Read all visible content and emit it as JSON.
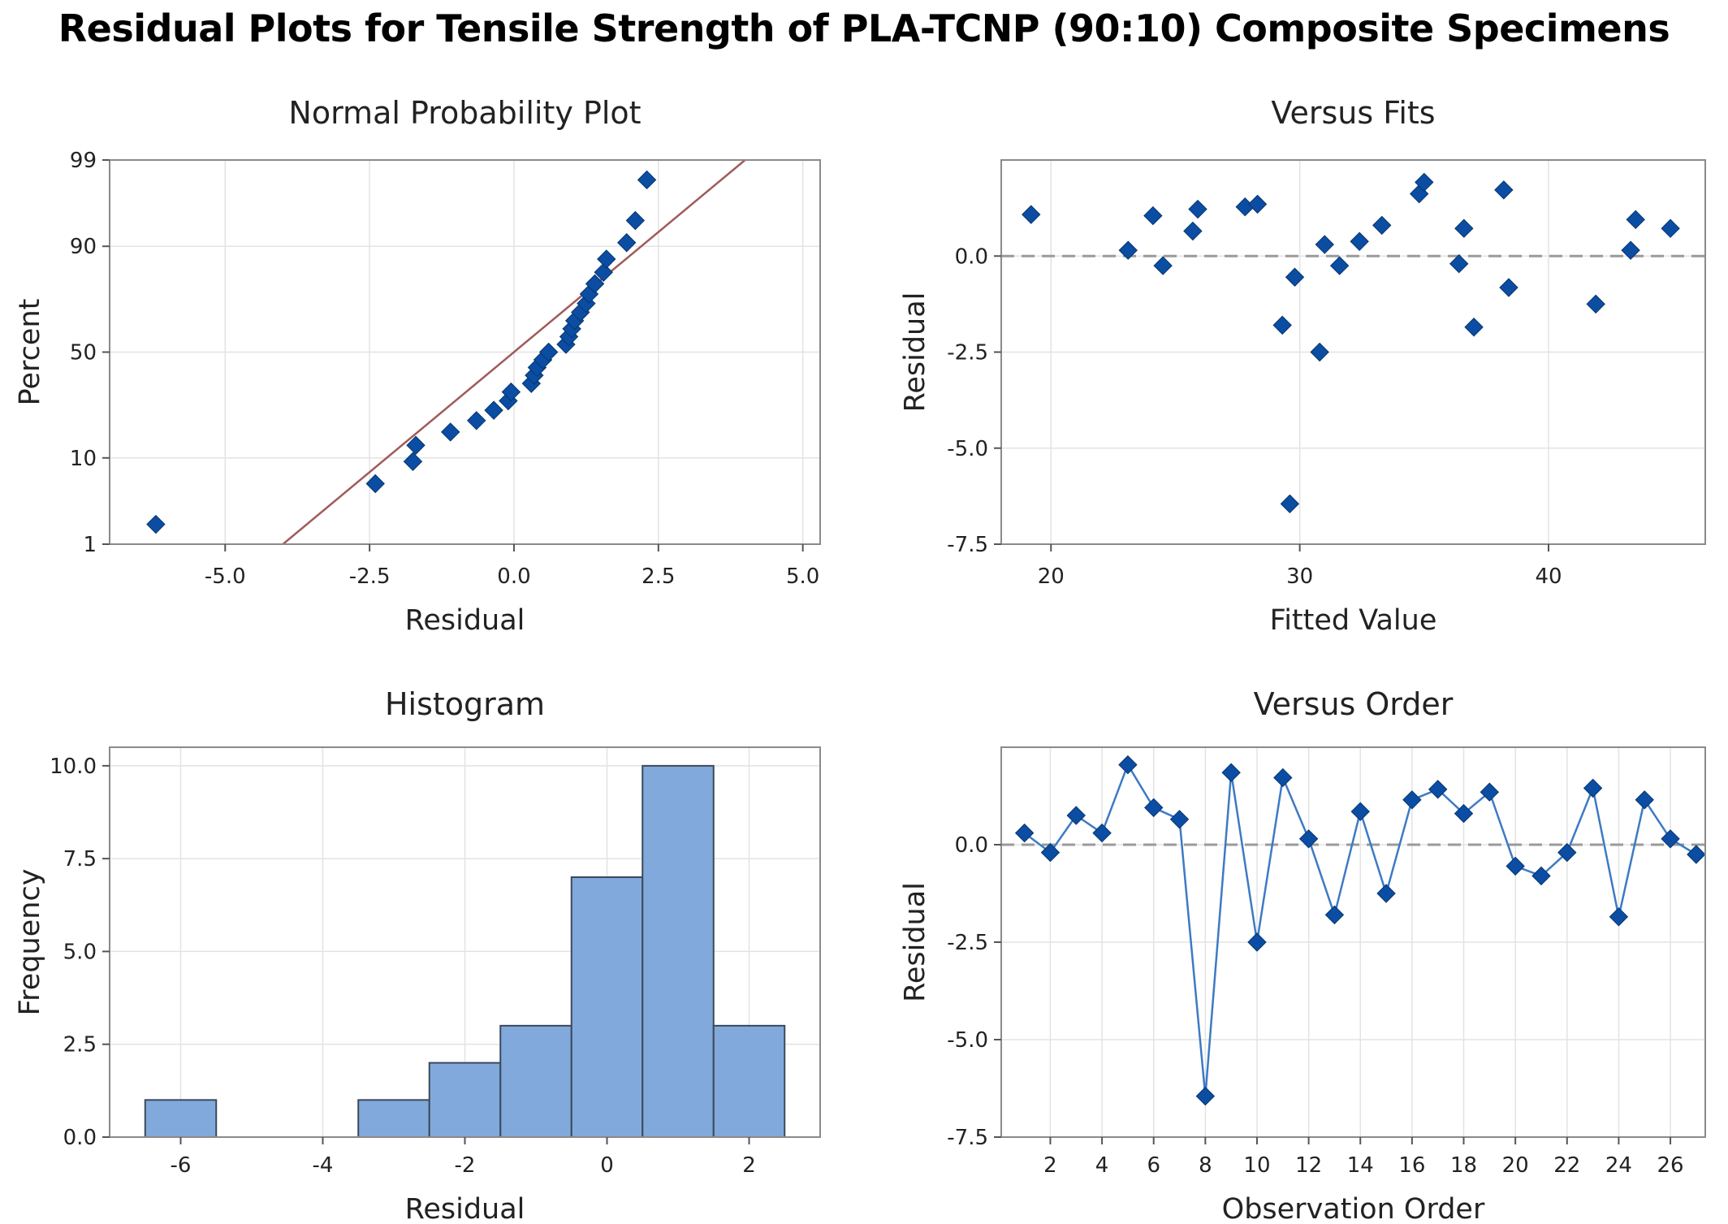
{
  "title": "Residual Plots for Tensile Strength of PLA-TCNP (90:10) Composite Specimens",
  "colors": {
    "point": "#0b4da2",
    "fit_line": "#a05a5a",
    "bar_fill": "#82a9dc",
    "bar_edge": "#3a4a5a",
    "order_line": "#3d7ac4",
    "reference": "#9a9a9a",
    "grid": "#e3e3e3",
    "frame": "#8a8a8a"
  },
  "chart_data": [
    {
      "id": "normal",
      "type": "scatter",
      "title": "Normal Probability Plot",
      "xlabel": "Residual",
      "ylabel": "Percent",
      "xlim": [
        -7.0,
        5.3
      ],
      "ylim": [
        1,
        99
      ],
      "yscale": "normal-probability",
      "xticks": [
        -5.0,
        -2.5,
        0.0,
        2.5,
        5.0
      ],
      "xtick_labels": [
        "-5.0",
        "-2.5",
        "0.0",
        "2.5",
        "5.0"
      ],
      "yticks": [
        1,
        10,
        50,
        90,
        99
      ],
      "ytick_labels": [
        "1",
        "10",
        "50",
        "90",
        "99"
      ],
      "grid": true,
      "fit_line": [
        [
          -4.0,
          1
        ],
        [
          4.0,
          99
        ]
      ],
      "points": [
        [
          -6.2,
          1.85
        ],
        [
          -2.4,
          5.55
        ],
        [
          -1.75,
          9.25
        ],
        [
          -1.7,
          12.95
        ],
        [
          -1.1,
          16.65
        ],
        [
          -0.65,
          20.35
        ],
        [
          -0.35,
          24.05
        ],
        [
          -0.1,
          27.75
        ],
        [
          -0.05,
          31.45
        ],
        [
          0.3,
          35.2
        ],
        [
          0.35,
          38.9
        ],
        [
          0.4,
          42.6
        ],
        [
          0.5,
          46.3
        ],
        [
          0.6,
          50.0
        ],
        [
          0.9,
          53.7
        ],
        [
          0.95,
          57.4
        ],
        [
          1.0,
          61.1
        ],
        [
          1.05,
          64.8
        ],
        [
          1.15,
          68.5
        ],
        [
          1.25,
          72.2
        ],
        [
          1.3,
          75.9
        ],
        [
          1.4,
          79.6
        ],
        [
          1.55,
          83.3
        ],
        [
          1.6,
          87.0
        ],
        [
          1.95,
          90.75
        ],
        [
          2.1,
          94.45
        ],
        [
          2.3,
          98.15
        ]
      ]
    },
    {
      "id": "fits",
      "type": "scatter",
      "title": "Versus Fits",
      "xlabel": "Fitted Value",
      "ylabel": "Residual",
      "xlim": [
        18,
        46.3
      ],
      "ylim": [
        -7.5,
        2.5
      ],
      "xticks": [
        20,
        30,
        40
      ],
      "xtick_labels": [
        "20",
        "30",
        "40"
      ],
      "yticks": [
        -7.5,
        -5.0,
        -2.5,
        0.0
      ],
      "ytick_labels": [
        "-7.5",
        "-5.0",
        "-2.5",
        "0.0"
      ],
      "grid": true,
      "reference_y": 0,
      "points": [
        [
          19.2,
          1.08
        ],
        [
          23.1,
          0.15
        ],
        [
          24.1,
          1.05
        ],
        [
          24.5,
          -0.25
        ],
        [
          25.7,
          0.65
        ],
        [
          25.9,
          1.22
        ],
        [
          27.8,
          1.28
        ],
        [
          28.3,
          1.35
        ],
        [
          29.3,
          -1.8
        ],
        [
          29.6,
          -6.45
        ],
        [
          29.8,
          -0.55
        ],
        [
          30.8,
          -2.5
        ],
        [
          31.0,
          0.3
        ],
        [
          31.6,
          -0.25
        ],
        [
          32.4,
          0.38
        ],
        [
          33.3,
          0.8
        ],
        [
          34.8,
          1.62
        ],
        [
          35.0,
          1.92
        ],
        [
          36.4,
          -0.2
        ],
        [
          36.6,
          0.72
        ],
        [
          37.0,
          -1.85
        ],
        [
          38.2,
          1.72
        ],
        [
          38.4,
          -0.82
        ],
        [
          41.9,
          -1.25
        ],
        [
          43.3,
          0.15
        ],
        [
          43.5,
          0.95
        ],
        [
          44.9,
          0.72
        ]
      ]
    },
    {
      "id": "histogram",
      "type": "bar",
      "title": "Histogram",
      "xlabel": "Residual",
      "ylabel": "Frequency",
      "xlim": [
        -7.0,
        3.0
      ],
      "ylim": [
        0,
        10.5
      ],
      "xticks": [
        -6,
        -4,
        -2,
        0,
        2
      ],
      "xtick_labels": [
        "-6",
        "-4",
        "-2",
        "0",
        "2"
      ],
      "yticks": [
        0.0,
        2.5,
        5.0,
        7.5,
        10.0
      ],
      "ytick_labels": [
        "0.0",
        "2.5",
        "5.0",
        "7.5",
        "10.0"
      ],
      "grid": true,
      "bin_width": 1,
      "bin_centers": [
        -6,
        -5,
        -4,
        -3,
        -2,
        -1,
        0,
        1,
        2
      ],
      "values": [
        1,
        0,
        0,
        1,
        2,
        3,
        7,
        10,
        3
      ]
    },
    {
      "id": "order",
      "type": "line",
      "title": "Versus Order",
      "xlabel": "Observation Order",
      "ylabel": "Residual",
      "xlim": [
        0.1,
        27.35
      ],
      "ylim": [
        -7.5,
        2.5
      ],
      "xticks": [
        2,
        4,
        6,
        8,
        10,
        12,
        14,
        16,
        18,
        20,
        22,
        24,
        26
      ],
      "xtick_labels": [
        "2",
        "4",
        "6",
        "8",
        "10",
        "12",
        "14",
        "16",
        "18",
        "20",
        "22",
        "24",
        "26"
      ],
      "yticks": [
        -7.5,
        -5.0,
        -2.5,
        0.0
      ],
      "ytick_labels": [
        "-7.5",
        "-5.0",
        "-2.5",
        "0.0"
      ],
      "grid": true,
      "reference_y": 0,
      "x": [
        1,
        2,
        3,
        4,
        5,
        6,
        7,
        8,
        9,
        10,
        11,
        12,
        13,
        14,
        15,
        16,
        17,
        18,
        19,
        20,
        21,
        22,
        23,
        24,
        25,
        26,
        27
      ],
      "values": [
        0.3,
        -0.2,
        0.75,
        0.3,
        2.05,
        0.95,
        0.65,
        -6.45,
        1.85,
        -2.5,
        1.72,
        0.15,
        -1.8,
        0.85,
        -1.25,
        1.15,
        1.42,
        0.8,
        1.35,
        -0.55,
        -0.8,
        -0.2,
        1.45,
        -1.85,
        1.15,
        0.15,
        -0.25
      ]
    }
  ]
}
